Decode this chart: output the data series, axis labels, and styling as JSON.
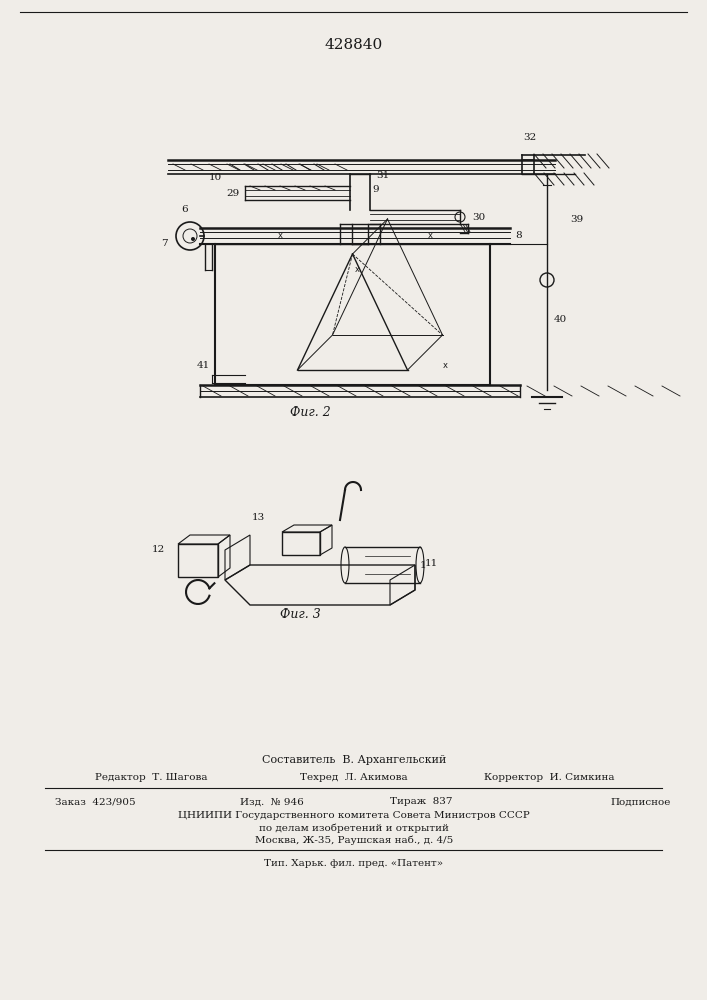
{
  "patent_number": "428840",
  "background_color": "#f0ede8",
  "line_color": "#1a1a1a",
  "fig2_caption": "Фиг. 2",
  "fig3_caption": "Фиг. 3",
  "footer_line1": "Составитель  В. Архангельский",
  "footer_line2_col1": "Редактор  Т. Шагова",
  "footer_line2_col2": "Техред  Л. Акимова",
  "footer_line2_col3": "Корректор  И. Симкина",
  "footer_line3_col1": "Заказ  423/905",
  "footer_line3_col2": "Изд.  № 946",
  "footer_line3_col3": "Тираж  837",
  "footer_line3_col4": "Подписное",
  "footer_line4": "ЦНИИПИ Государственного комитета Совета Министров СССР",
  "footer_line5": "по делам изобретений и открытий",
  "footer_line6": "Москва, Ж-35, Раушская наб., д. 4/5",
  "footer_line7": "Тип. Харьк. фил. пред. «Патент»"
}
